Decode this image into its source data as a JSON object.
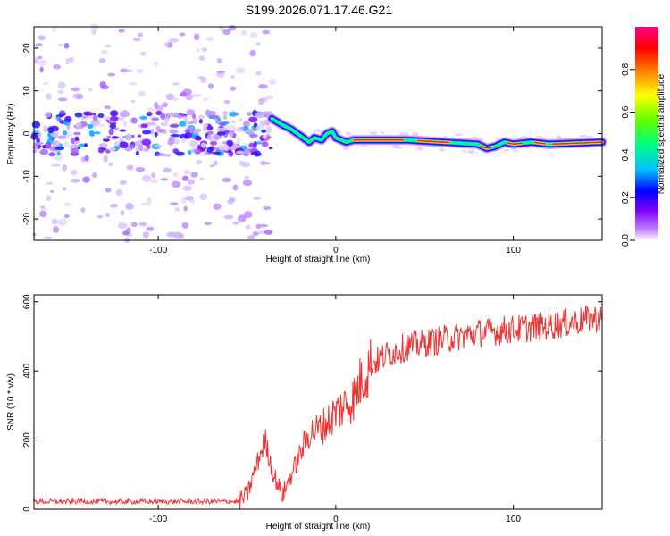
{
  "title": "S199.2026.071.17.46.G21",
  "chart_data": [
    {
      "type": "heatmap",
      "name": "spectrogram",
      "xlabel": "Height of straight line (km)",
      "ylabel": "Frequency (Hz)",
      "xlim": [
        -170,
        150
      ],
      "ylim": [
        -25,
        25
      ],
      "xticks": [
        -100,
        0,
        100
      ],
      "yticks": [
        -20,
        -10,
        0,
        10,
        20
      ],
      "colorbar": {
        "label": "Normalized spectral amplitude",
        "range": [
          0.0,
          1.0
        ],
        "ticks": [
          0.0,
          0.2,
          0.4,
          0.6,
          0.8
        ],
        "tick_labels": [
          "0.0",
          "0.2",
          "0.4",
          "0.6",
          "0.8"
        ],
        "colors": [
          "#ffffff",
          "#c080ff",
          "#8000ff",
          "#0000ff",
          "#00c0ff",
          "#00ff80",
          "#80ff00",
          "#ffff00",
          "#ff8000",
          "#ff0000",
          "#ff0080"
        ]
      },
      "ridge": {
        "x": [
          -36,
          -30,
          -25,
          -20,
          -15,
          -12,
          -8,
          -5,
          -2,
          0,
          3,
          6,
          10,
          20,
          40,
          60,
          80,
          85,
          90,
          95,
          100,
          110,
          120,
          150
        ],
        "y": [
          3.5,
          2.0,
          1.0,
          -0.5,
          -2.0,
          -1.0,
          -1.5,
          0.0,
          0.5,
          -1.0,
          -1.5,
          -2.0,
          -1.5,
          -1.5,
          -1.5,
          -2.0,
          -2.5,
          -3.5,
          -3.0,
          -2.0,
          -2.5,
          -2.0,
          -2.5,
          -2.0
        ]
      }
    },
    {
      "type": "line",
      "name": "snr",
      "xlabel": "Height of straight line (km)",
      "ylabel": "SNR (10 * v/v)",
      "xlim": [
        -170,
        150
      ],
      "ylim": [
        0,
        620
      ],
      "xticks": [
        -100,
        0,
        100
      ],
      "yticks": [
        0,
        200,
        400,
        600
      ],
      "color": "#ee3333",
      "trend": {
        "x": [
          -170,
          -55,
          -50,
          -45,
          -40,
          -35,
          -30,
          -25,
          -20,
          -15,
          -10,
          -5,
          0,
          5,
          10,
          15,
          20,
          30,
          40,
          60,
          80,
          100,
          120,
          150
        ],
        "y": [
          22,
          22,
          40,
          120,
          200,
          100,
          40,
          100,
          160,
          220,
          230,
          250,
          280,
          300,
          320,
          380,
          420,
          450,
          470,
          490,
          510,
          520,
          530,
          555
        ]
      }
    }
  ]
}
